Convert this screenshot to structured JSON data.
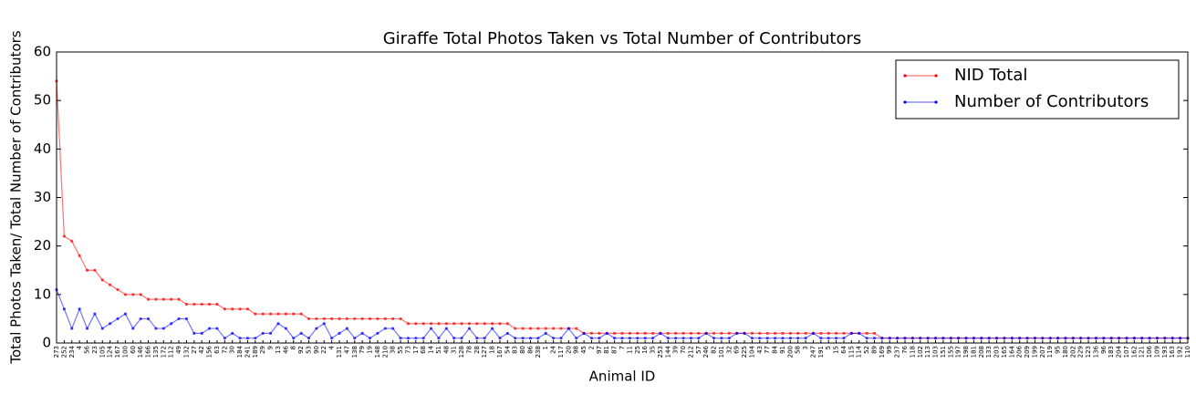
{
  "chart_data": {
    "type": "line",
    "title": "Giraffe Total Photos Taken vs Total Number of Contributors",
    "x_label": "Animal ID",
    "y_label": "Total Photos Taken/ Total Number of Contributors",
    "categories": [
      "273",
      "252",
      "234",
      "4",
      "56",
      "23",
      "105",
      "124",
      "167",
      "100",
      "60",
      "146",
      "166",
      "135",
      "172",
      "112",
      "49",
      "132",
      "27",
      "42",
      "156",
      "63",
      "72",
      "30",
      "184",
      "241",
      "189",
      "29",
      "9",
      "13",
      "46",
      "8",
      "92",
      "53",
      "90",
      "22",
      "4",
      "131",
      "47",
      "138",
      "79",
      "19",
      "148",
      "210",
      "38",
      "55",
      "73",
      "17",
      "68",
      "14",
      "51",
      "48",
      "31",
      "128",
      "78",
      "28",
      "127",
      "18",
      "167",
      "54",
      "83",
      "80",
      "86",
      "238",
      "1",
      "24",
      "117",
      "20",
      "98",
      "45",
      "2",
      "97",
      "81",
      "87",
      "7",
      "11",
      "25",
      "16",
      "35",
      "253",
      "144",
      "39",
      "70",
      "212",
      "57",
      "246",
      "82",
      "101",
      "32",
      "69",
      "225",
      "104",
      "43",
      "77",
      "84",
      "91",
      "200",
      "58",
      "3",
      "247",
      "191",
      "5",
      "15",
      "64",
      "115",
      "114",
      "52",
      "89",
      "169",
      "99",
      "237",
      "76",
      "118",
      "102",
      "113",
      "103",
      "151",
      "155",
      "197",
      "198",
      "181",
      "208",
      "133",
      "203",
      "165",
      "164",
      "206",
      "209",
      "199",
      "207",
      "119",
      "95",
      "180",
      "202",
      "229",
      "123",
      "136",
      "96",
      "183",
      "204",
      "107",
      "162",
      "121",
      "106",
      "109",
      "193",
      "163",
      "192",
      "110"
    ],
    "series": [
      {
        "name": "NID Total",
        "color": "#ff0000",
        "values": [
          54,
          22,
          21,
          18,
          15,
          15,
          13,
          12,
          11,
          10,
          10,
          10,
          9,
          9,
          9,
          9,
          9,
          8,
          8,
          8,
          8,
          8,
          7,
          7,
          7,
          7,
          6,
          6,
          6,
          6,
          6,
          6,
          6,
          5,
          5,
          5,
          5,
          5,
          5,
          5,
          5,
          5,
          5,
          5,
          5,
          5,
          4,
          4,
          4,
          4,
          4,
          4,
          4,
          4,
          4,
          4,
          4,
          4,
          4,
          4,
          3,
          3,
          3,
          3,
          3,
          3,
          3,
          3,
          3,
          2,
          2,
          2,
          2,
          2,
          2,
          2,
          2,
          2,
          2,
          2,
          2,
          2,
          2,
          2,
          2,
          2,
          2,
          2,
          2,
          2,
          2,
          2,
          2,
          2,
          2,
          2,
          2,
          2,
          2,
          2,
          2,
          2,
          2,
          2,
          2,
          2,
          2,
          2,
          1,
          1,
          1,
          1,
          1,
          1,
          1,
          1,
          1,
          1,
          1,
          1,
          1,
          1,
          1,
          1,
          1,
          1,
          1,
          1,
          1,
          1,
          1,
          1,
          1,
          1,
          1,
          1,
          1,
          1,
          1,
          1,
          1,
          1,
          1,
          1,
          1,
          1,
          1,
          1,
          1
        ]
      },
      {
        "name": "Number of Contributors",
        "color": "#0000ff",
        "values": [
          11,
          7,
          3,
          7,
          3,
          6,
          3,
          4,
          5,
          6,
          3,
          5,
          5,
          3,
          3,
          4,
          5,
          5,
          2,
          2,
          3,
          3,
          1,
          2,
          1,
          1,
          1,
          2,
          2,
          4,
          3,
          1,
          2,
          1,
          3,
          4,
          1,
          2,
          3,
          1,
          2,
          1,
          2,
          3,
          3,
          1,
          1,
          1,
          1,
          3,
          1,
          3,
          1,
          1,
          3,
          1,
          1,
          3,
          1,
          2,
          1,
          1,
          1,
          1,
          2,
          1,
          1,
          3,
          1,
          2,
          1,
          1,
          2,
          1,
          1,
          1,
          1,
          1,
          1,
          2,
          1,
          1,
          1,
          1,
          1,
          2,
          1,
          1,
          1,
          2,
          2,
          1,
          1,
          1,
          1,
          1,
          1,
          1,
          1,
          2,
          1,
          1,
          1,
          1,
          2,
          2,
          1,
          1,
          1,
          1,
          1,
          1,
          1,
          1,
          1,
          1,
          1,
          1,
          1,
          1,
          1,
          1,
          1,
          1,
          1,
          1,
          1,
          1,
          1,
          1,
          1,
          1,
          1,
          1,
          1,
          1,
          1,
          1,
          1,
          1,
          1,
          1,
          1,
          1,
          1,
          1,
          1,
          1,
          1
        ]
      }
    ],
    "ylim": [
      0,
      60
    ],
    "yticks": [
      0,
      10,
      20,
      30,
      40,
      50,
      60
    ],
    "legend": "upper right"
  }
}
